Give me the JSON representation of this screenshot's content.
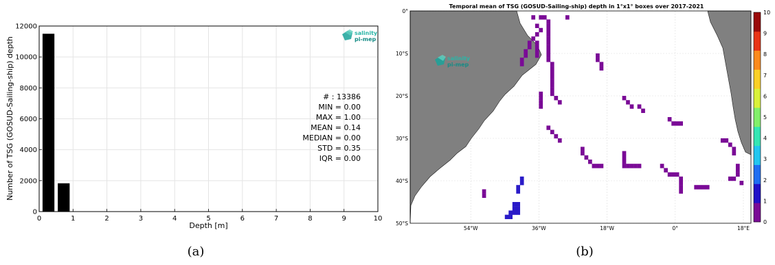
{
  "colors": {
    "bar": "#000000",
    "grid": "#e4e4e4",
    "land": "#808080",
    "ocean": "#ffffff",
    "track_purple": "#7a0a96",
    "track_blue": "#2a1bc8",
    "logo_teal": "#1aa39a"
  },
  "logo": {
    "line1": "salinity",
    "line2": "pi-mep"
  },
  "captions": {
    "a": "(a)",
    "b": "(b)"
  },
  "chart_data": [
    {
      "type": "bar",
      "title": "",
      "xlabel": "Depth [m]",
      "ylabel": "Number of TSG (GOSUD-Sailing-ship) depth",
      "xlim": [
        0,
        10
      ],
      "ylim": [
        0,
        12000
      ],
      "xticks": [
        "0",
        "1",
        "2",
        "3",
        "4",
        "5",
        "6",
        "7",
        "8",
        "9",
        "10"
      ],
      "yticks": [
        "0",
        "2000",
        "4000",
        "6000",
        "8000",
        "10000",
        "12000"
      ],
      "grid": true,
      "bins": [
        {
          "x0": 0.1,
          "x1": 0.45,
          "value": 11500
        },
        {
          "x0": 0.55,
          "x1": 0.9,
          "value": 1830
        }
      ],
      "stats": [
        "# : 13386",
        "MIN = 0.00",
        "MAX =  1.00",
        "MEAN = 0.14",
        "MEDIAN = 0.00",
        "STD = 0.35",
        "IQR = 0.00"
      ]
    },
    {
      "type": "heatmap",
      "title": "Temporal mean of TSG (GOSUD-Sailing-ship) depth in 1°x1° boxes over 2017-2021",
      "xlim": [
        -70,
        20
      ],
      "ylim": [
        -50,
        0
      ],
      "xticks": [
        {
          "value": -54,
          "label": "54°W"
        },
        {
          "value": -36,
          "label": "36°W"
        },
        {
          "value": -18,
          "label": "18°W"
        },
        {
          "value": 0,
          "label": "0°"
        },
        {
          "value": 18,
          "label": "18°E"
        }
      ],
      "yticks": [
        {
          "value": 0,
          "label": "0°"
        },
        {
          "value": -10,
          "label": "10°S"
        },
        {
          "value": -20,
          "label": "20°S"
        },
        {
          "value": -30,
          "label": "30°S"
        },
        {
          "value": -40,
          "label": "40°S"
        },
        {
          "value": -50,
          "label": "50°S"
        }
      ],
      "colorbar": {
        "min": 0,
        "max": 10,
        "ticks": [
          "0",
          "1",
          "2",
          "3",
          "4",
          "5",
          "6",
          "7",
          "8",
          "9",
          "10"
        ]
      },
      "track_cells_depth0": [
        [
          -38,
          -1
        ],
        [
          -36,
          -1
        ],
        [
          -35,
          -1
        ],
        [
          -29,
          -1
        ],
        [
          -34,
          -2
        ],
        [
          -37,
          -3
        ],
        [
          -34,
          -3
        ],
        [
          -36,
          -4
        ],
        [
          -34,
          -4
        ],
        [
          -37,
          -5
        ],
        [
          -34,
          -5
        ],
        [
          -34,
          -6
        ],
        [
          -38,
          -6
        ],
        [
          -39,
          -7
        ],
        [
          -37,
          -7
        ],
        [
          -34,
          -7
        ],
        [
          -39,
          -8
        ],
        [
          -37,
          -8
        ],
        [
          -34,
          -8
        ],
        [
          -40,
          -9
        ],
        [
          -37,
          -9
        ],
        [
          -34,
          -9
        ],
        [
          -40,
          -10
        ],
        [
          -37,
          -10
        ],
        [
          -34,
          -10
        ],
        [
          -41,
          -11
        ],
        [
          -34,
          -11
        ],
        [
          -41,
          -12
        ],
        [
          -33,
          -12
        ],
        [
          -33,
          -13
        ],
        [
          -33,
          -14
        ],
        [
          -33,
          -15
        ],
        [
          -33,
          -16
        ],
        [
          -33,
          -17
        ],
        [
          -33,
          -18
        ],
        [
          -33,
          -19
        ],
        [
          -32,
          -20
        ],
        [
          -31,
          -21
        ],
        [
          -36,
          -19
        ],
        [
          -36,
          -20
        ],
        [
          -36,
          -21
        ],
        [
          -36,
          -22
        ],
        [
          -21,
          -10
        ],
        [
          -21,
          -11
        ],
        [
          -20,
          -12
        ],
        [
          -20,
          -13
        ],
        [
          -14,
          -20
        ],
        [
          -13,
          -21
        ],
        [
          -12,
          -22
        ],
        [
          -10,
          -22
        ],
        [
          -9,
          -23
        ],
        [
          -2,
          -25
        ],
        [
          -1,
          -26
        ],
        [
          0,
          -26
        ],
        [
          1,
          -26
        ],
        [
          -34,
          -27
        ],
        [
          -33,
          -28
        ],
        [
          -32,
          -29
        ],
        [
          -31,
          -30
        ],
        [
          -25,
          -32
        ],
        [
          -25,
          -33
        ],
        [
          -24,
          -34
        ],
        [
          -23,
          -35
        ],
        [
          -22,
          -36
        ],
        [
          -21,
          -36
        ],
        [
          -20,
          -36
        ],
        [
          -14,
          -33
        ],
        [
          -14,
          -34
        ],
        [
          -14,
          -35
        ],
        [
          -14,
          -36
        ],
        [
          -13,
          -36
        ],
        [
          -12,
          -36
        ],
        [
          -11,
          -36
        ],
        [
          -10,
          -36
        ],
        [
          -4,
          -36
        ],
        [
          -3,
          -37
        ],
        [
          -2,
          -38
        ],
        [
          -1,
          -38
        ],
        [
          0,
          -38
        ],
        [
          1,
          -39
        ],
        [
          1,
          -40
        ],
        [
          1,
          -41
        ],
        [
          1,
          -42
        ],
        [
          5,
          -41
        ],
        [
          6,
          -41
        ],
        [
          7,
          -41
        ],
        [
          8,
          -41
        ],
        [
          12,
          -30
        ],
        [
          13,
          -30
        ],
        [
          14,
          -31
        ],
        [
          15,
          -32
        ],
        [
          15,
          -33
        ],
        [
          16,
          -36
        ],
        [
          16,
          -37
        ],
        [
          16,
          -38
        ],
        [
          15,
          -39
        ],
        [
          14,
          -39
        ],
        [
          17,
          -40
        ],
        [
          -51,
          -42
        ],
        [
          -51,
          -43
        ]
      ],
      "track_cells_depth1": [
        [
          -41,
          -39
        ],
        [
          -41,
          -40
        ],
        [
          -42,
          -41
        ],
        [
          -42,
          -42
        ],
        [
          -43,
          -45
        ],
        [
          -42,
          -45
        ],
        [
          -43,
          -46
        ],
        [
          -42,
          -46
        ],
        [
          -44,
          -47
        ],
        [
          -43,
          -47
        ],
        [
          -42,
          -47
        ],
        [
          -45,
          -48
        ],
        [
          -44,
          -48
        ]
      ]
    }
  ]
}
